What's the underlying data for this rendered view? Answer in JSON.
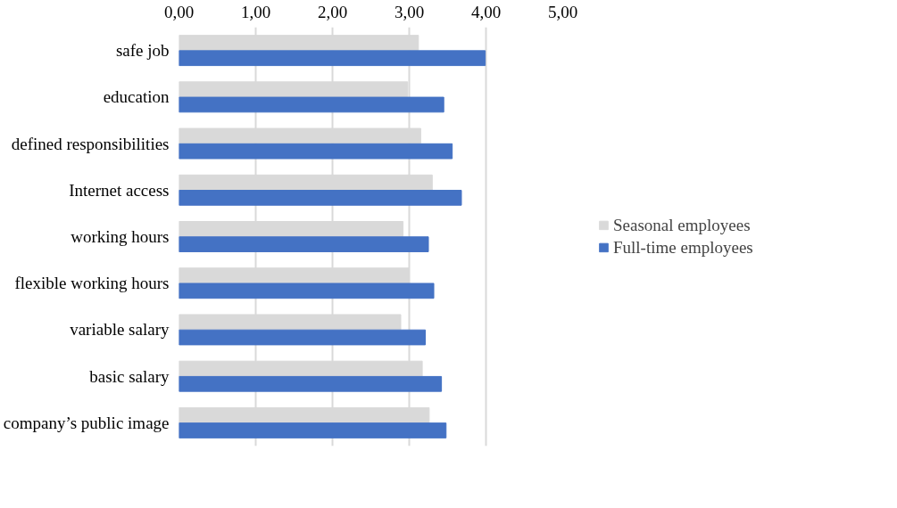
{
  "chart_data": {
    "type": "bar",
    "orientation": "horizontal",
    "categories": [
      "safe job",
      "education",
      "defined responsibilities",
      "Internet access",
      "working hours",
      "flexible working hours",
      "variable salary",
      "basic salary",
      "company’s public image"
    ],
    "series": [
      {
        "name": "Seasonal employees",
        "color": "#d9d9d9",
        "values": [
          3.12,
          2.98,
          3.15,
          3.3,
          2.92,
          3.0,
          2.89,
          3.17,
          3.26
        ]
      },
      {
        "name": "Full-time employees",
        "color": "#4472c4",
        "values": [
          3.99,
          3.45,
          3.56,
          3.68,
          3.25,
          3.32,
          3.21,
          3.42,
          3.48
        ]
      }
    ],
    "xlim": [
      0,
      5
    ],
    "xticks": [
      {
        "value": 0,
        "label": "0,00"
      },
      {
        "value": 1,
        "label": "1,00"
      },
      {
        "value": 2,
        "label": "2,00"
      },
      {
        "value": 3,
        "label": "3,00"
      },
      {
        "value": 4,
        "label": "4,00"
      },
      {
        "value": 5,
        "label": "5,00"
      }
    ],
    "grid": "x",
    "legend": "right"
  }
}
